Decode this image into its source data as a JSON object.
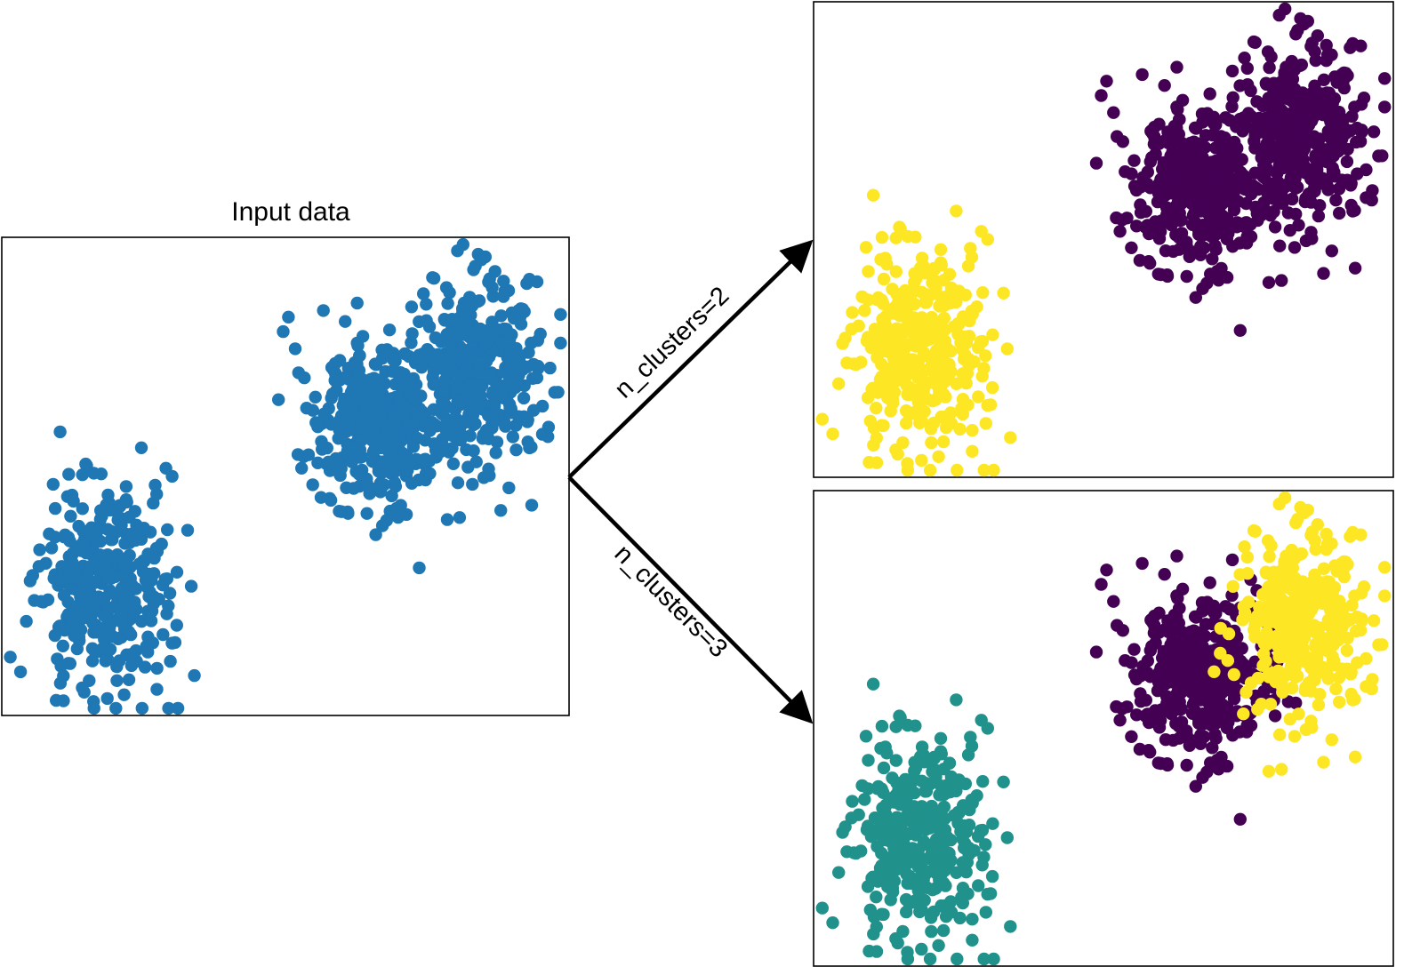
{
  "panels": {
    "input": {
      "title": "Input data"
    },
    "two_clusters": {},
    "three_clusters": {}
  },
  "edges": [
    {
      "from": "input",
      "to": "two_clusters",
      "label": "n_clusters=2"
    },
    {
      "from": "input",
      "to": "three_clusters",
      "label": "n_clusters=3"
    }
  ],
  "colors": {
    "input_points": "#1f77b4",
    "viridis_purple": "#440154",
    "viridis_teal": "#21918c",
    "viridis_yellow": "#fde725",
    "frame": "#000000",
    "arrow": "#000000"
  },
  "clusters": {
    "input": [
      {
        "group": "left-blob",
        "color": "#1f77b4"
      },
      {
        "group": "middle-blob",
        "color": "#1f77b4"
      },
      {
        "group": "right-blob",
        "color": "#1f77b4"
      }
    ],
    "two_clusters": [
      {
        "group": "left-blob",
        "color": "#fde725"
      },
      {
        "group": "middle-blob",
        "color": "#440154"
      },
      {
        "group": "right-blob",
        "color": "#440154"
      }
    ],
    "three_clusters": [
      {
        "group": "left-blob",
        "color": "#21918c"
      },
      {
        "group": "middle-blob",
        "color": "#440154"
      },
      {
        "group": "right-blob",
        "color": "#fde725"
      }
    ]
  }
}
